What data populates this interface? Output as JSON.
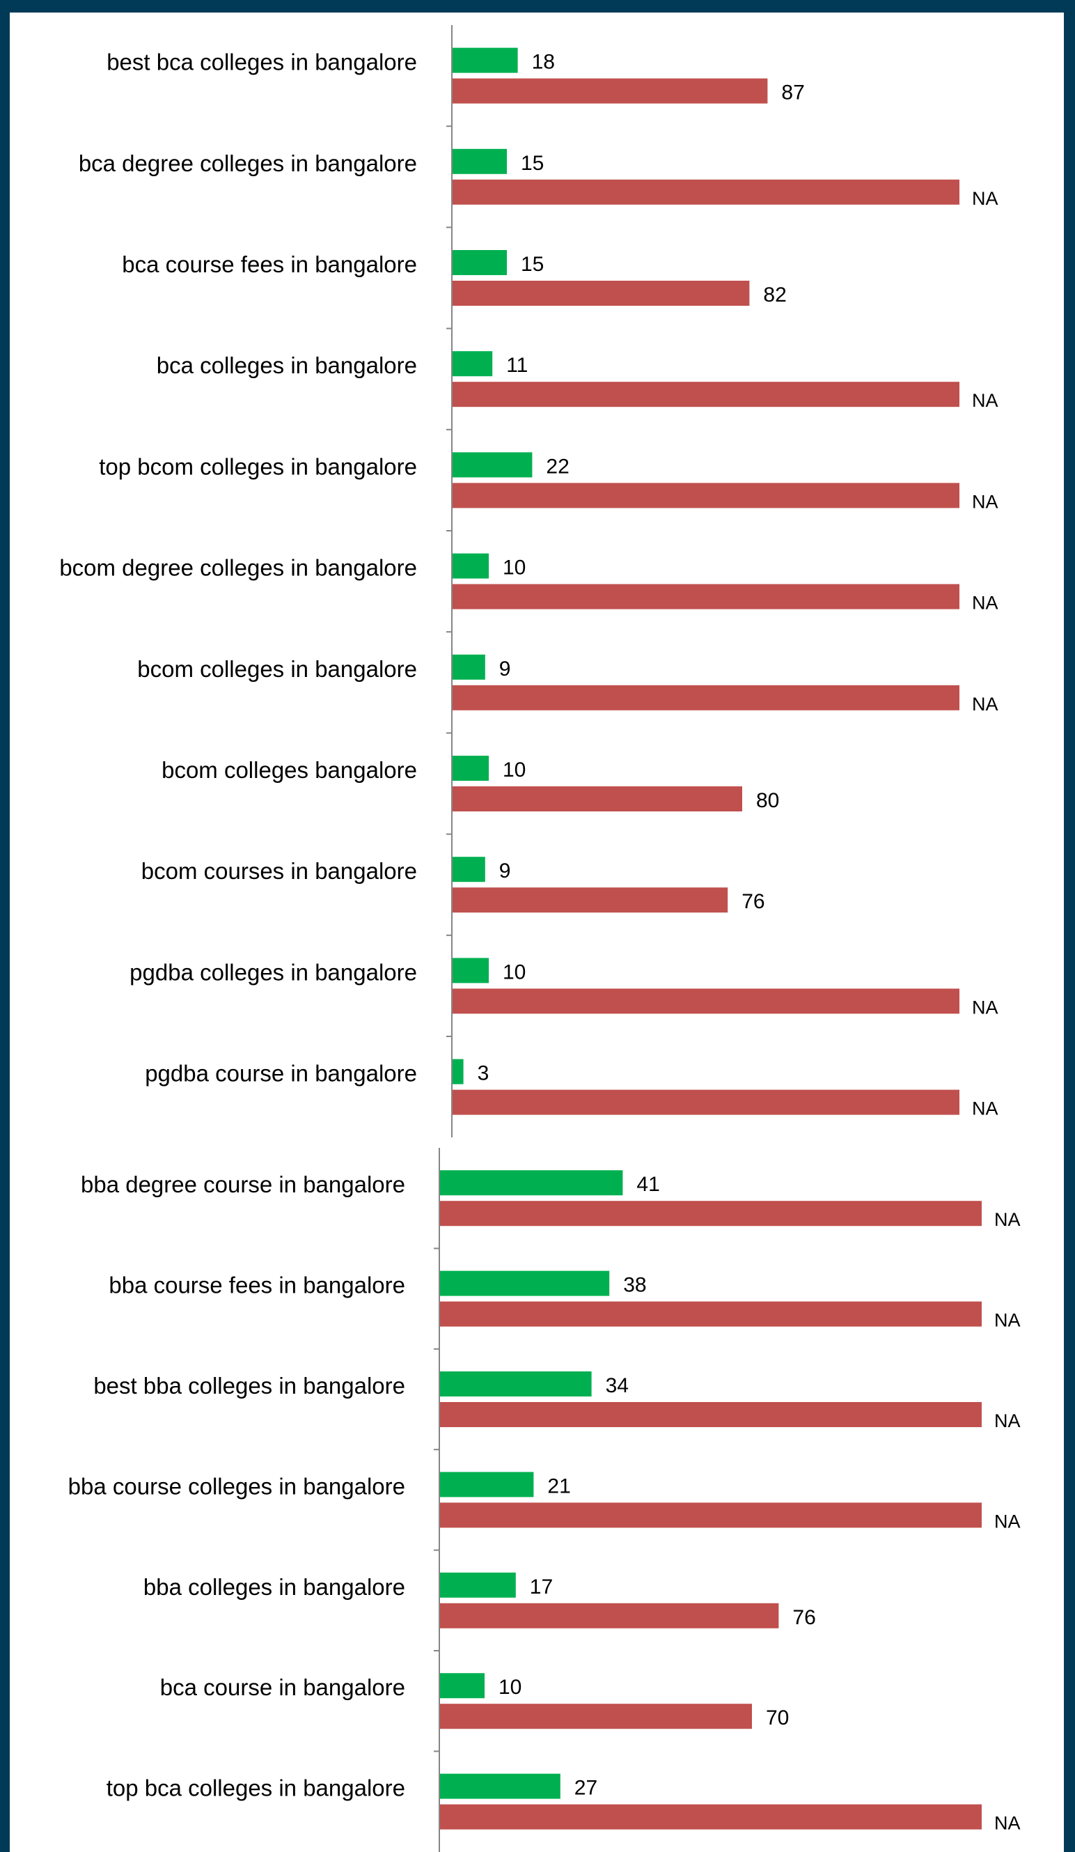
{
  "colors": {
    "background": "#003a57",
    "panel": "#ffffff",
    "series_green": "#00b050",
    "series_red": "#c0504d",
    "axis": "#868686"
  },
  "chart_data": [
    {
      "type": "bar",
      "orientation": "horizontal",
      "categories": [
        "best bca colleges in bangalore",
        "bca degree colleges in  bangalore",
        "bca course fees in bangalore",
        "bca colleges in bangalore",
        "top bcom colleges in  bangalore",
        "bcom degree colleges in bangalore",
        "bcom colleges in bangalore",
        "bcom colleges bangalore",
        "bcom courses in bangalore",
        "pgdba colleges in bangalore",
        "pgdba course in bangalore"
      ],
      "series": [
        {
          "color": "#00b050",
          "values": [
            18,
            15,
            15,
            11,
            22,
            10,
            9,
            10,
            9,
            10,
            3
          ],
          "labels": [
            "18",
            "15",
            "15",
            "11",
            "22",
            "10",
            "9",
            "10",
            "9",
            "10",
            "3"
          ]
        },
        {
          "color": "#c0504d",
          "values": [
            87,
            null,
            82,
            null,
            null,
            null,
            null,
            80,
            76,
            null,
            null
          ],
          "labels": [
            "87",
            "NA",
            "82",
            "NA",
            "NA",
            "NA",
            "NA",
            "80",
            "76",
            "NA",
            "NA"
          ]
        }
      ],
      "legend": "none",
      "grid": false
    },
    {
      "type": "bar",
      "orientation": "horizontal",
      "categories": [
        "bba degree course in  bangalore",
        "bba course fees in bangalore",
        "best bba colleges in bangalore",
        "bba course colleges in bangalore",
        "bba colleges in bangalore",
        "bca course in bangalore",
        "top bca colleges in bangalore"
      ],
      "series": [
        {
          "color": "#00b050",
          "values": [
            41,
            38,
            34,
            21,
            17,
            10,
            27
          ],
          "labels": [
            "41",
            "38",
            "34",
            "21",
            "17",
            "10",
            "27"
          ]
        },
        {
          "color": "#c0504d",
          "values": [
            null,
            null,
            null,
            null,
            76,
            70,
            null
          ],
          "labels": [
            "NA",
            "NA",
            "NA",
            "NA",
            "76",
            "70",
            "NA"
          ]
        }
      ],
      "legend": "none",
      "grid": false
    }
  ]
}
